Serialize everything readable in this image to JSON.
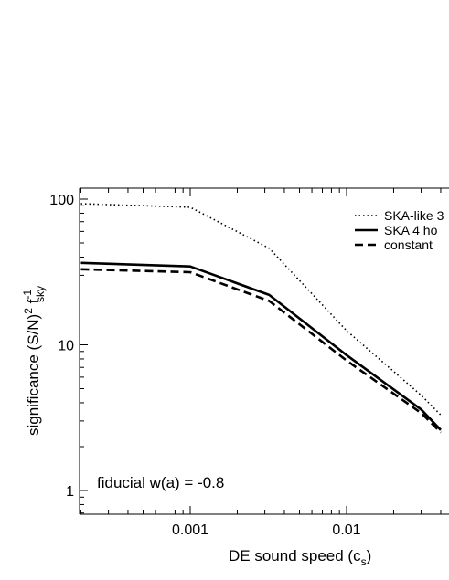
{
  "chart_data": {
    "type": "line",
    "xscale": "log",
    "yscale": "log",
    "xlim": [
      0.0002,
      0.04
    ],
    "ylim": [
      0.7,
      120
    ],
    "xlabel": {
      "main": "DE sound speed (c",
      "sub": "s",
      "close": ")"
    },
    "ylabel": {
      "pre": "significance (S/N)",
      "sup1": "2",
      "mid": " f",
      "sup2": "-1",
      "sub": "sky"
    },
    "xticks": [
      {
        "value": 0.001,
        "label": "0.001"
      },
      {
        "value": 0.01,
        "label": "0.01"
      }
    ],
    "yticks": [
      {
        "value": 1,
        "label": "1"
      },
      {
        "value": 10,
        "label": "10"
      },
      {
        "value": 100,
        "label": "100"
      }
    ],
    "annotation": "fiducial w(a) = -0.8",
    "legend": {
      "placement": "top-right"
    },
    "series": [
      {
        "name": "SKA-like 3",
        "style": "dotted",
        "x": [
          0.0002,
          0.001,
          0.0032,
          0.01,
          0.03,
          0.04
        ],
        "y": [
          93,
          88,
          46,
          12.5,
          4.5,
          3.3
        ]
      },
      {
        "name": "SKA 4 ho",
        "style": "solid",
        "x": [
          0.0002,
          0.001,
          0.0032,
          0.01,
          0.03,
          0.04
        ],
        "y": [
          36.5,
          34.5,
          22,
          8.5,
          3.6,
          2.6
        ]
      },
      {
        "name": "constant",
        "style": "dashed",
        "x": [
          0.0002,
          0.001,
          0.0032,
          0.01,
          0.03,
          0.04
        ],
        "y": [
          33,
          31.5,
          20,
          7.8,
          3.4,
          2.5
        ]
      }
    ]
  }
}
